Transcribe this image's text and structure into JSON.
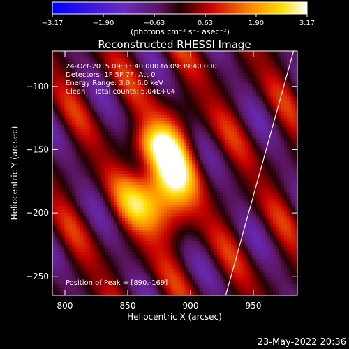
{
  "chart_data": {
    "type": "heatmap",
    "title": "Reconstructed RHESSI Image",
    "xlabel": "Heliocentric X (arcsec)",
    "ylabel": "Heliocentric Y (arcsec)",
    "xlim": [
      790,
      985
    ],
    "ylim": [
      -265,
      -72
    ],
    "xticks": [
      800,
      850,
      900,
      950
    ],
    "yticks": [
      -100,
      -150,
      -200,
      -250
    ],
    "colorbar": {
      "range": [
        -3.17,
        3.17
      ],
      "ticks": [
        "-3.17",
        "-1.90",
        "-0.63",
        "0.63",
        "1.90",
        "3.17"
      ],
      "unit_label": "(photons cm⁻² s⁻¹ asec⁻²)",
      "colormap": "blue-purple-red-yellow-white"
    },
    "annotations": [
      "24-Oct-2015 09:33:40.000 to 09:39:40.000",
      "Detectors: 1F 5F 7F, Att 0",
      "Energy Range: 3.0 - 6.0 keV",
      "Clean    Total counts: 5.04E+04"
    ],
    "peak_label": "Position of Peak = [890,-169]",
    "peak": {
      "x": 890,
      "y": -169
    },
    "timestamp": "23-May-2022 20:36",
    "solar_limb": {
      "x_at_top": 982,
      "x_at_bottom": 928
    },
    "sources": [
      {
        "x": 882,
        "y": -168,
        "amplitude": 3.17,
        "sx": 14,
        "sy": 28
      },
      {
        "x": 860,
        "y": -190,
        "amplitude": 1.6,
        "sx": 14,
        "sy": 16
      },
      {
        "x": 870,
        "y": -145,
        "amplitude": 1.1,
        "sx": 12,
        "sy": 10
      }
    ]
  }
}
